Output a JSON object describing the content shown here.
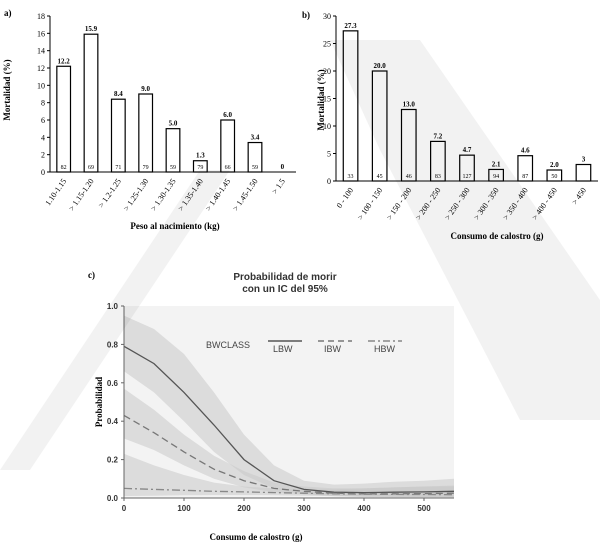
{
  "chart_data": [
    {
      "panel": "a)",
      "type": "bar",
      "ylabel": "Mortalidad (%)",
      "xlabel": "Peso al nacimiento (kg)",
      "ylim": [
        0,
        18
      ],
      "yticks": [
        0,
        2,
        4,
        6,
        8,
        10,
        12,
        14,
        16,
        18
      ],
      "categories": [
        "1.10-1.15",
        "> 1.15-1.20",
        "> 1.2-1.25",
        "> 1.25-1.30",
        "> 1.30-1.35",
        "> 1.35-1.40",
        "> 1.40-1.45",
        "> 1.45-1.50",
        "> 1.5"
      ],
      "values": [
        12.2,
        15.9,
        8.4,
        9.0,
        5.0,
        1.3,
        6.0,
        3.4,
        0
      ],
      "value_labels": [
        "12.2",
        "15.9",
        "8.4",
        "9.0",
        "5.0",
        "1.3",
        "6.0",
        "3.4",
        "0"
      ],
      "n_labels": [
        "82",
        "69",
        "71",
        "79",
        "59",
        "79",
        "66",
        "59",
        ""
      ]
    },
    {
      "panel": "b)",
      "type": "bar",
      "ylabel": "Mortalidad (%)",
      "xlabel": "Consumo de calostro (g)",
      "ylim": [
        0,
        30
      ],
      "yticks": [
        0,
        5,
        10,
        15,
        20,
        25,
        30
      ],
      "categories": [
        "0 - 100",
        "> 100 - 150",
        "> 150 - 200",
        "> 200 - 250",
        "> 250 - 300",
        "> 300 - 350",
        "> 350 - 400",
        "> 400 - 450",
        "> 450"
      ],
      "values": [
        27.3,
        20.0,
        13.0,
        7.2,
        4.7,
        2.1,
        4.6,
        2.0,
        3.0
      ],
      "value_labels": [
        "27.3",
        "20.0",
        "13.0",
        "7.2",
        "4.7",
        "2.1",
        "4.6",
        "2.0",
        "3"
      ],
      "n_labels": [
        "33",
        "45",
        "46",
        "83",
        "127",
        "94",
        "87",
        "50",
        ""
      ]
    },
    {
      "panel": "c)",
      "type": "line",
      "title": "Probabilidad de morir con un IC del 95%",
      "title_lines": [
        "Probabilidad de morir",
        "con un IC del 95%"
      ],
      "ylabel": "Probabilidad",
      "xlabel": "Consumo de calostro (g)",
      "xlim": [
        0,
        550
      ],
      "ylim": [
        0,
        1.0
      ],
      "xticks": [
        0,
        100,
        200,
        300,
        400,
        500
      ],
      "yticks": [
        0.0,
        0.2,
        0.4,
        0.6,
        0.8,
        1.0
      ],
      "ytick_labels": [
        "0.0",
        "0.2",
        "0.4",
        "0.6",
        "0.8",
        "1.0"
      ],
      "legend_title": "BWCLASS",
      "legend_position": "top",
      "series": [
        {
          "name": "LBW",
          "style": "solid",
          "x": [
            0,
            50,
            100,
            150,
            200,
            250,
            300,
            350,
            400,
            450,
            500,
            550
          ],
          "y": [
            0.79,
            0.7,
            0.55,
            0.38,
            0.2,
            0.09,
            0.045,
            0.03,
            0.028,
            0.03,
            0.032,
            0.035
          ],
          "lower": [
            0.66,
            0.55,
            0.4,
            0.24,
            0.12,
            0.05,
            0.02,
            0.01,
            0.005,
            0.004,
            0.004,
            0.004
          ],
          "upper": [
            0.95,
            0.88,
            0.75,
            0.55,
            0.33,
            0.17,
            0.09,
            0.07,
            0.075,
            0.085,
            0.09,
            0.1
          ]
        },
        {
          "name": "IBW",
          "style": "dashed",
          "x": [
            0,
            50,
            100,
            150,
            200,
            250,
            300,
            350,
            400,
            450,
            500,
            550
          ],
          "y": [
            0.43,
            0.34,
            0.24,
            0.15,
            0.09,
            0.05,
            0.035,
            0.025,
            0.022,
            0.022,
            0.023,
            0.025
          ],
          "lower": [
            0.31,
            0.25,
            0.17,
            0.1,
            0.055,
            0.03,
            0.02,
            0.012,
            0.008,
            0.006,
            0.005,
            0.005
          ],
          "upper": [
            0.57,
            0.46,
            0.33,
            0.22,
            0.14,
            0.08,
            0.06,
            0.05,
            0.05,
            0.055,
            0.06,
            0.065
          ]
        },
        {
          "name": "HBW",
          "style": "dashdot",
          "x": [
            0,
            50,
            100,
            150,
            200,
            250,
            300,
            350,
            400,
            450,
            500,
            550
          ],
          "y": [
            0.05,
            0.045,
            0.04,
            0.035,
            0.032,
            0.028,
            0.025,
            0.022,
            0.02,
            0.019,
            0.018,
            0.017
          ],
          "lower": [
            0.01,
            0.012,
            0.014,
            0.015,
            0.015,
            0.014,
            0.012,
            0.01,
            0.008,
            0.006,
            0.005,
            0.004
          ],
          "upper": [
            0.23,
            0.17,
            0.12,
            0.08,
            0.06,
            0.05,
            0.045,
            0.045,
            0.05,
            0.055,
            0.06,
            0.06
          ]
        }
      ]
    }
  ],
  "colors": {
    "lbw": "#555555",
    "ibw": "#777777",
    "hbw": "#888888",
    "band": "#c8c8c8",
    "plot_bg": "#f3f3f3"
  }
}
